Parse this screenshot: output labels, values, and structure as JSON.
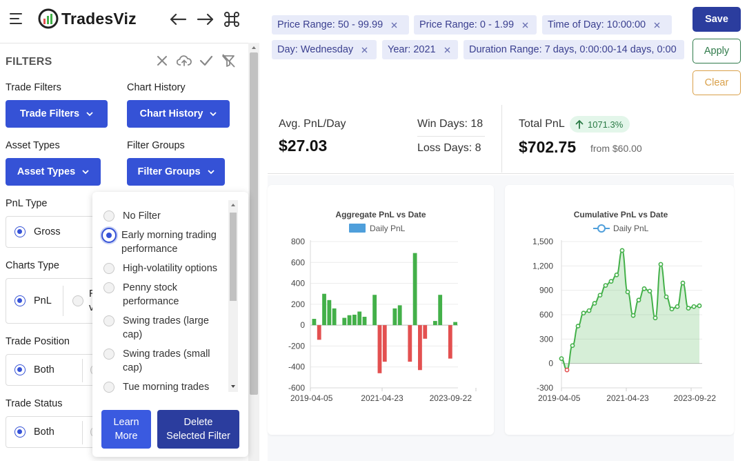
{
  "app": {
    "name": "TradesViz"
  },
  "sidebar": {
    "title": "FILTERS",
    "trade_filters": {
      "label": "Trade Filters",
      "button": "Trade Filters"
    },
    "chart_history": {
      "label": "Chart History",
      "button": "Chart History"
    },
    "asset_types": {
      "label": "Asset Types",
      "button": "Asset Types"
    },
    "filter_groups": {
      "label": "Filter Groups",
      "button": "Filter Groups"
    },
    "pnl_type": {
      "label": "PnL Type",
      "selected": "Gross"
    },
    "charts_type": {
      "label": "Charts Type",
      "selected": "PnL",
      "other_fragment_1": "R",
      "other_fragment_2": "v"
    },
    "trade_position": {
      "label": "Trade Position",
      "selected": "Both"
    },
    "trade_status": {
      "label": "Trade Status",
      "selected": "Both"
    }
  },
  "filter_group_popup": {
    "options": [
      {
        "line1": "No Filter",
        "line2": ""
      },
      {
        "line1": "Early morning trading",
        "line2": "performance",
        "selected": true
      },
      {
        "line1": "High-volatility options",
        "line2": ""
      },
      {
        "line1": "Penny stock",
        "line2": "performance"
      },
      {
        "line1": "Swing trades (large",
        "line2": "cap)"
      },
      {
        "line1": "Swing trades (small",
        "line2": "cap)"
      },
      {
        "line1": "Tue morning trades",
        "line2": ""
      }
    ],
    "learn_more": {
      "line1": "Learn",
      "line2": "More"
    },
    "delete_filter": {
      "line1": "Delete",
      "line2": "Selected Filter"
    }
  },
  "chips": [
    "Price Range: 50 - 99.99",
    "Price Range: 0 - 1.99",
    "Time of Day: 10:00:00",
    "Day: Wednesday",
    "Year: 2021",
    "Duration Range: 7 days, 0:00:00-14 days, 0:00"
  ],
  "actions": {
    "save": "Save",
    "apply": "Apply",
    "clear": "Clear"
  },
  "stats": {
    "avg_pnl_label": "Avg. PnL/Day",
    "avg_pnl_value": "$27.03",
    "win_days": "Win Days: 18",
    "loss_days": "Loss Days: 8",
    "total_pnl_label": "Total PnL",
    "total_pnl_pct": "1071.3%",
    "total_pnl_value": "$702.75",
    "total_pnl_from": "from $60.00"
  },
  "colors": {
    "primary": "#3552d6",
    "dark_primary": "#2b3d9e",
    "positive": "#43b049",
    "negative": "#e35050",
    "apply": "#2f7a4a",
    "clear": "#d9a049"
  },
  "chart_data": [
    {
      "type": "bar",
      "title": "Aggregate PnL vs Date",
      "legend": "Daily PnL",
      "ylim": [
        -600,
        800
      ],
      "yticks": [
        800,
        600,
        400,
        200,
        0,
        -200,
        -400,
        -600
      ],
      "xticks": [
        "2019-04-05",
        "2021-04-23",
        "2023-09-22"
      ],
      "values": [
        60,
        -140,
        300,
        240,
        160,
        0,
        70,
        95,
        100,
        130,
        80,
        0,
        290,
        -460,
        -350,
        0,
        160,
        190,
        0,
        -350,
        690,
        -430,
        -130,
        0,
        40,
        290,
        0,
        -320,
        30
      ]
    },
    {
      "type": "area",
      "title": "Cumulative PnL vs Date",
      "legend": "Daily PnL",
      "ylim": [
        -300,
        1500
      ],
      "yticks": [
        "1,500",
        "1,200",
        "900",
        "600",
        "300",
        "0",
        "-300"
      ],
      "xticks": [
        "2019-04-05",
        "2021-04-23",
        "2023-09-22"
      ],
      "values": [
        60,
        -80,
        220,
        460,
        620,
        650,
        740,
        840,
        960,
        1010,
        1090,
        1390,
        880,
        590,
        780,
        920,
        890,
        560,
        1220,
        820,
        670,
        700,
        990,
        680,
        700,
        710
      ]
    }
  ]
}
